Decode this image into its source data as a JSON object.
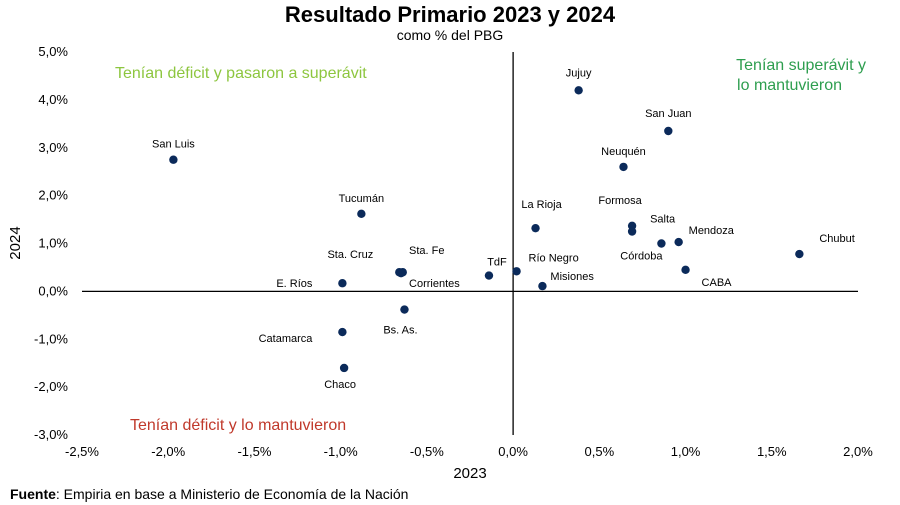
{
  "colors": {
    "point": "#0b2a5a",
    "axis": "#000000",
    "q_deficit_to_superavit": "#8dc63f",
    "q_superavit_kept": "#2e9e4f",
    "q_deficit_kept": "#c0392b"
  },
  "source": {
    "label": "Fuente",
    "text": "Empiria en base a Ministerio de Economía de la Nación"
  },
  "chart_data": {
    "type": "scatter",
    "title": "Resultado Primario 2023 y 2024",
    "subtitle": "como % del PBG",
    "xlabel": "2023",
    "ylabel": "2024",
    "xlim": [
      -2.5,
      2.0
    ],
    "ylim": [
      -3.0,
      5.0
    ],
    "x_ticks": [
      {
        "v": -2.5,
        "label": "-2,5%"
      },
      {
        "v": -2.0,
        "label": "-2,0%"
      },
      {
        "v": -1.5,
        "label": "-1,5%"
      },
      {
        "v": -1.0,
        "label": "-1,0%"
      },
      {
        "v": -0.5,
        "label": "-0,5%"
      },
      {
        "v": 0.0,
        "label": "0,0%"
      },
      {
        "v": 0.5,
        "label": "0,5%"
      },
      {
        "v": 1.0,
        "label": "1,0%"
      },
      {
        "v": 1.5,
        "label": "1,5%"
      },
      {
        "v": 2.0,
        "label": "2,0%"
      }
    ],
    "y_ticks": [
      {
        "v": 5.0,
        "label": "5,0%"
      },
      {
        "v": 4.0,
        "label": "4,0%"
      },
      {
        "v": 3.0,
        "label": "3,0%"
      },
      {
        "v": 2.0,
        "label": "2,0%"
      },
      {
        "v": 1.0,
        "label": "1,0%"
      },
      {
        "v": 0.0,
        "label": "0,0%"
      },
      {
        "v": -1.0,
        "label": "-1,0%"
      },
      {
        "v": -2.0,
        "label": "-2,0%"
      },
      {
        "v": -3.0,
        "label": "-3,0%"
      }
    ],
    "grid": false,
    "quadrant_labels": [
      {
        "text": "Tenían déficit y pasaron a superávit",
        "color_key": "q_deficit_to_superavit"
      },
      {
        "text": "Tenían superávit y",
        "color_key": "q_superavit_kept"
      },
      {
        "text": "lo mantuvieron",
        "color_key": "q_superavit_kept"
      },
      {
        "text": "Tenían déficit y lo mantuvieron",
        "color_key": "q_deficit_kept"
      }
    ],
    "points": [
      {
        "name": "Jujuy",
        "x": 0.38,
        "y": 4.2
      },
      {
        "name": "San Juan",
        "x": 0.9,
        "y": 3.35
      },
      {
        "name": "Neuquén",
        "x": 0.64,
        "y": 2.6
      },
      {
        "name": "San Luis",
        "x": -1.97,
        "y": 2.75
      },
      {
        "name": "Tucumán",
        "x": -0.88,
        "y": 1.62
      },
      {
        "name": "La Rioja",
        "x": 0.13,
        "y": 1.32
      },
      {
        "name": "Formosa",
        "x": 0.69,
        "y": 1.37
      },
      {
        "name": "Salta",
        "x": 0.69,
        "y": 1.25
      },
      {
        "name": "Mendoza",
        "x": 0.96,
        "y": 1.03
      },
      {
        "name": "Córdoba",
        "x": 0.86,
        "y": 1.0
      },
      {
        "name": "Chubut",
        "x": 1.66,
        "y": 0.78
      },
      {
        "name": "CABA",
        "x": 1.0,
        "y": 0.45
      },
      {
        "name": "Sta. Cruz",
        "x": -0.66,
        "y": 0.4
      },
      {
        "name": "Sta. Fe",
        "x": -0.64,
        "y": 0.4
      },
      {
        "name": "Corrientes",
        "x": -0.65,
        "y": 0.38
      },
      {
        "name": "E. Ríos",
        "x": -0.99,
        "y": 0.17
      },
      {
        "name": "TdF",
        "x": -0.14,
        "y": 0.33
      },
      {
        "name": "Río Negro",
        "x": 0.02,
        "y": 0.42
      },
      {
        "name": "Misiones",
        "x": 0.17,
        "y": 0.11
      },
      {
        "name": "Bs. As.",
        "x": -0.63,
        "y": -0.38
      },
      {
        "name": "Catamarca",
        "x": -0.99,
        "y": -0.85
      },
      {
        "name": "Chaco",
        "x": -0.98,
        "y": -1.6
      }
    ]
  }
}
